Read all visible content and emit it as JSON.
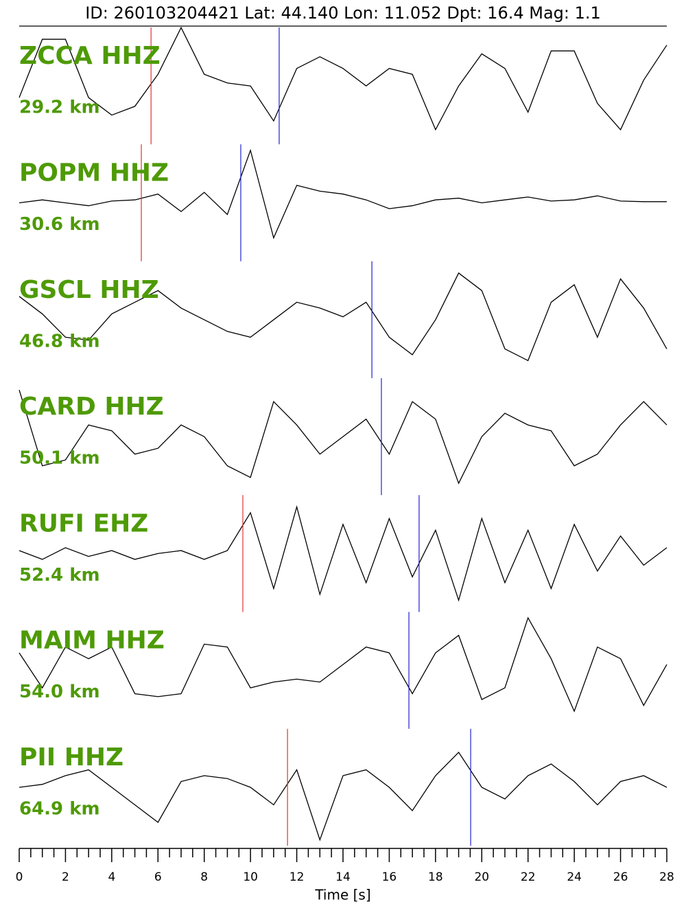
{
  "chart_data": {
    "type": "seismogram",
    "title": "ID: 260103204421 Lat:  44.140 Lon:  11.052 Dpt:    16.4 Mag:   1.1",
    "x_label": "Time [s]",
    "xlim": [
      0,
      28
    ],
    "xticks": [
      0,
      2,
      4,
      6,
      8,
      10,
      12,
      14,
      16,
      18,
      20,
      22,
      24,
      26,
      28
    ],
    "minor_xticks": [
      0.5,
      1,
      1.5,
      2.5,
      3,
      3.5,
      4.5,
      5,
      5.5,
      6.5,
      7,
      7.5,
      8.5,
      9,
      9.5,
      10.5,
      11,
      11.5,
      12.5,
      13,
      13.5,
      14.5,
      15,
      15.5,
      16.5,
      17,
      17.5,
      18.5,
      19,
      19.5,
      20.5,
      21,
      21.5,
      22.5,
      23,
      23.5,
      24.5,
      25,
      25.5,
      26.5,
      27,
      27.5
    ],
    "x": [
      0,
      1,
      2,
      3,
      4,
      5,
      6,
      7,
      8,
      9,
      10,
      11,
      12,
      13,
      14,
      15,
      16,
      17,
      18,
      19,
      20,
      21,
      22,
      23,
      24,
      25,
      26,
      27,
      28
    ],
    "label_color": "#4e9a06",
    "trace_color": "#000000",
    "p_color": "#e03030",
    "s_color": "#2020d0",
    "series": [
      {
        "name": "ZCCA HHZ",
        "distance": "29.2 km",
        "p_pick": 5.7,
        "s_pick": 11.24,
        "values": [
          -0.2,
          0.8,
          0.8,
          -0.2,
          -0.5,
          -0.35,
          0.2,
          1.0,
          0.2,
          0.05,
          0.0,
          -0.6,
          0.3,
          0.5,
          0.3,
          0.0,
          0.3,
          0.2,
          -0.75,
          0.0,
          0.55,
          0.3,
          -0.45,
          0.6,
          0.6,
          -0.3,
          -0.75,
          0.1,
          0.7
        ]
      },
      {
        "name": "POPM HHZ",
        "distance": "30.6 km",
        "p_pick": 5.28,
        "s_pick": 9.58,
        "values": [
          0,
          0.05,
          0,
          -0.05,
          0.03,
          0.05,
          0.15,
          -0.15,
          0.18,
          -0.2,
          0.9,
          -0.6,
          0.3,
          0.2,
          0.15,
          0.05,
          -0.1,
          -0.05,
          0.05,
          0.08,
          0.0,
          0.05,
          0.1,
          0.03,
          0.05,
          0.12,
          0.03,
          0.02,
          0.02
        ]
      },
      {
        "name": "GSCL HHZ",
        "distance": "46.8 km",
        "p_pick": null,
        "s_pick": 15.25,
        "values": [
          0.4,
          0.1,
          -0.3,
          -0.35,
          0.1,
          0.3,
          0.5,
          0.2,
          0.0,
          -0.2,
          -0.3,
          0.0,
          0.3,
          0.2,
          0.05,
          0.3,
          -0.3,
          -0.6,
          0.0,
          0.8,
          0.5,
          -0.5,
          -0.7,
          0.3,
          0.6,
          -0.3,
          0.7,
          0.2,
          -0.5
        ]
      },
      {
        "name": "CARD HHZ",
        "distance": "50.1 km",
        "p_pick": null,
        "s_pick": 15.66,
        "values": [
          0.8,
          -0.5,
          -0.4,
          0.2,
          0.1,
          -0.3,
          -0.2,
          0.2,
          0.0,
          -0.5,
          -0.7,
          0.6,
          0.2,
          -0.3,
          0.0,
          0.3,
          -0.3,
          0.6,
          0.3,
          -0.8,
          0.0,
          0.4,
          0.2,
          0.1,
          -0.5,
          -0.3,
          0.2,
          0.6,
          0.2
        ]
      },
      {
        "name": "RUFI EHZ",
        "distance": "52.4 km",
        "p_pick": 9.67,
        "s_pick": 17.29,
        "values": [
          0.05,
          -0.1,
          0.1,
          -0.05,
          0.05,
          -0.1,
          0.0,
          0.05,
          -0.1,
          0.05,
          0.7,
          -0.6,
          0.8,
          -0.7,
          0.5,
          -0.5,
          0.6,
          -0.4,
          0.4,
          -0.8,
          0.6,
          -0.5,
          0.4,
          -0.6,
          0.5,
          -0.3,
          0.3,
          -0.2,
          0.1
        ]
      },
      {
        "name": "MAIM HHZ",
        "distance": "54.0 km",
        "p_pick": null,
        "s_pick": 16.85,
        "values": [
          0.3,
          -0.3,
          0.4,
          0.2,
          0.4,
          -0.4,
          -0.45,
          -0.4,
          0.45,
          0.4,
          -0.3,
          -0.2,
          -0.15,
          -0.2,
          0.1,
          0.4,
          0.3,
          -0.4,
          0.3,
          0.6,
          -0.5,
          -0.3,
          0.9,
          0.2,
          -0.7,
          0.4,
          0.2,
          -0.6,
          0.1
        ]
      },
      {
        "name": "PII HHZ",
        "distance": "64.9 km",
        "p_pick": 11.6,
        "s_pick": 19.52,
        "values": [
          0.0,
          0.05,
          0.2,
          0.3,
          0.0,
          -0.3,
          -0.6,
          0.1,
          0.2,
          0.15,
          0.0,
          -0.3,
          0.3,
          -0.9,
          0.2,
          0.3,
          0.0,
          -0.4,
          0.2,
          0.6,
          0.0,
          -0.2,
          0.2,
          0.4,
          0.1,
          -0.3,
          0.1,
          0.2,
          0.0
        ]
      }
    ]
  }
}
